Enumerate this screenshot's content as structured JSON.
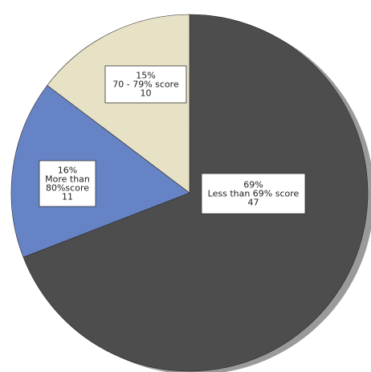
{
  "chart_data": {
    "type": "pie",
    "slices": [
      {
        "percent_label": "69%",
        "name_lines": [
          "Less than 69% score"
        ],
        "value": 47,
        "color": "#4d4d4d"
      },
      {
        "percent_label": "16%",
        "name_lines": [
          "More than",
          "80%score"
        ],
        "value": 11,
        "color": "#6683c6"
      },
      {
        "percent_label": "15%",
        "name_lines": [
          "70 - 79% score"
        ],
        "value": 10,
        "color": "#e7e1c6"
      }
    ],
    "start_angle": "12 o'clock",
    "direction": "clockwise",
    "shadow_color": "#9a9a9a",
    "legend": "none"
  }
}
